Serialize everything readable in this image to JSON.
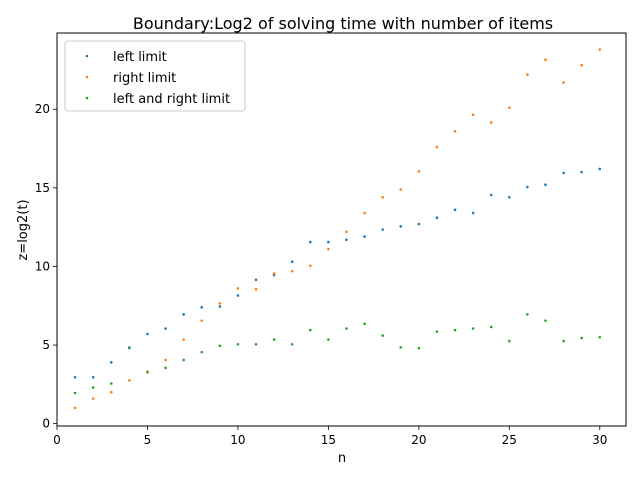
{
  "chart_data": {
    "type": "scatter",
    "title": "Boundary:Log2 of solving time with number of items",
    "xlabel": "n",
    "ylabel": "z=log2(t)",
    "xlim": [
      0,
      31.45
    ],
    "ylim": [
      -0.15,
      24.85
    ],
    "xticks": [
      0,
      5,
      10,
      15,
      20,
      25,
      30
    ],
    "yticks": [
      0,
      5,
      10,
      15,
      20
    ],
    "grid": false,
    "legend_position": "top-left",
    "series": [
      {
        "name": "left limit",
        "color": "#1f77b4",
        "x": [
          1,
          2,
          3,
          4,
          5,
          6,
          7,
          8,
          9,
          10,
          11,
          12,
          13,
          14,
          15,
          16,
          17,
          18,
          19,
          20,
          21,
          22,
          23,
          24,
          25,
          26,
          27,
          28,
          29,
          30
        ],
        "y": [
          2.95,
          2.95,
          3.9,
          4.85,
          5.7,
          6.05,
          6.95,
          7.4,
          7.45,
          8.15,
          9.15,
          9.45,
          10.3,
          11.55,
          11.55,
          11.7,
          11.9,
          12.35,
          12.55,
          12.7,
          13.1,
          13.6,
          13.4,
          14.55,
          14.4,
          15.05,
          15.2,
          15.95,
          16.0,
          16.2
        ]
      },
      {
        "name": "right limit",
        "color": "#ff7f0e",
        "x": [
          1,
          2,
          3,
          4,
          5,
          6,
          7,
          8,
          9,
          10,
          11,
          12,
          13,
          14,
          15,
          16,
          17,
          18,
          19,
          20,
          21,
          22,
          23,
          24,
          25,
          26,
          27,
          28,
          29,
          30
        ],
        "y": [
          1.0,
          1.6,
          2.0,
          2.75,
          3.25,
          4.05,
          5.35,
          6.55,
          7.65,
          8.6,
          8.55,
          9.55,
          9.7,
          10.05,
          11.1,
          12.2,
          13.4,
          14.4,
          14.9,
          16.05,
          17.6,
          18.6,
          19.65,
          19.15,
          20.1,
          22.2,
          23.15,
          21.7,
          22.8,
          23.8
        ]
      },
      {
        "name": "left and right limit",
        "color": "#2ca02c",
        "x": [
          1,
          2,
          3,
          4,
          5,
          6,
          7,
          8,
          9,
          10,
          11,
          12,
          13,
          14,
          15,
          16,
          17,
          18,
          19,
          20,
          21,
          22,
          23,
          24,
          25,
          26,
          27,
          28,
          29,
          30
        ],
        "y": [
          1.95,
          2.3,
          2.55,
          4.8,
          3.3,
          3.55,
          4.05,
          4.55,
          4.95,
          5.05,
          5.05,
          5.35,
          5.05,
          5.95,
          5.35,
          6.05,
          6.35,
          5.6,
          4.85,
          4.8,
          5.85,
          5.95,
          6.05,
          6.15,
          5.25,
          6.95,
          6.55,
          5.25,
          5.45,
          5.5
        ]
      }
    ]
  }
}
